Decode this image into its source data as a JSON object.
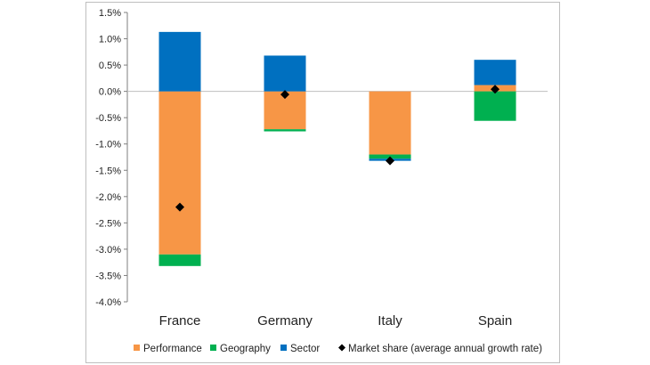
{
  "chart_data": {
    "type": "bar",
    "stacked": true,
    "categories": [
      "France",
      "Germany",
      "Italy",
      "Spain"
    ],
    "series": [
      {
        "name": "Performance",
        "color": "#F79646",
        "values": [
          -3.1,
          -0.72,
          -1.2,
          0.12
        ]
      },
      {
        "name": "Geography",
        "color": "#00B050",
        "values": [
          -0.22,
          -0.04,
          -0.08,
          -0.56
        ]
      },
      {
        "name": "Sector",
        "color": "#0070C0",
        "values": [
          1.13,
          0.68,
          -0.04,
          0.48
        ]
      }
    ],
    "markers": {
      "name": "Market share (average annual growth rate)",
      "symbol": "diamond",
      "color": "#000000",
      "values": [
        -2.2,
        -0.06,
        -1.32,
        0.04
      ]
    },
    "y_ticks": [
      "1.5%",
      "1.0%",
      "0.5%",
      "0.0%",
      "-0.5%",
      "-1.0%",
      "-1.5%",
      "-2.0%",
      "-2.5%",
      "-3.0%",
      "-3.5%",
      "-4.0%"
    ],
    "ylim": [
      -4.0,
      1.5
    ],
    "ystep": 0.5,
    "grid": false,
    "legend_position": "bottom",
    "title": "",
    "xlabel": "",
    "ylabel": ""
  }
}
